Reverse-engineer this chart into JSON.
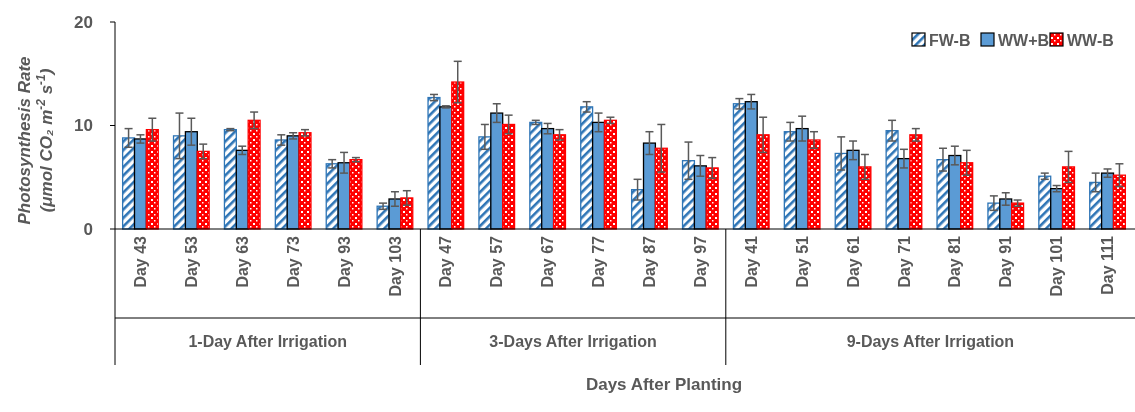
{
  "chart_data": {
    "type": "bar",
    "xlabel": "Days After Planting",
    "ylabel": "Photosynthesis Rate\n(μmol CO₂ m$^{-2}$ s$^{-1}$)",
    "categories": [
      "Day 43",
      "Day 53",
      "Day 63",
      "Day 73",
      "Day 93",
      "Day 103",
      "Day 47",
      "Day 57",
      "Day 67",
      "Day 77",
      "Day 87",
      "Day 97",
      "Day 41",
      "Day 51",
      "Day 61",
      "Day 71",
      "Day 81",
      "Day 91",
      "Day 101",
      "Day 111"
    ],
    "series": [
      {
        "name": "FW-B",
        "color": "#2e75b6",
        "values": [
          8.8,
          9.0,
          9.6,
          8.6,
          6.3,
          2.2,
          12.7,
          8.9,
          10.3,
          11.8,
          3.8,
          6.6,
          12.1,
          9.4,
          7.3,
          9.5,
          6.7,
          2.5,
          5.1,
          4.5
        ],
        "errors": [
          0.9,
          2.2,
          0.1,
          0.5,
          0.4,
          0.3,
          0.3,
          1.2,
          0.2,
          0.5,
          1.0,
          1.8,
          0.5,
          0.9,
          1.6,
          1.0,
          1.1,
          0.7,
          0.3,
          0.9
        ]
      },
      {
        "name": "WW+B",
        "color": "#5b9bd5",
        "values": [
          8.7,
          9.4,
          7.6,
          9.0,
          6.4,
          2.9,
          11.8,
          11.2,
          9.7,
          10.3,
          8.3,
          6.1,
          12.3,
          9.7,
          7.6,
          6.8,
          7.1,
          2.9,
          3.9,
          5.4
        ],
        "errors": [
          0.4,
          1.3,
          0.4,
          0.3,
          1.0,
          0.7,
          0.1,
          0.9,
          0.5,
          0.9,
          1.1,
          1.0,
          0.7,
          1.2,
          0.9,
          0.9,
          0.9,
          0.6,
          0.3,
          0.4
        ]
      },
      {
        "name": "WW-B",
        "color": "#ff0000",
        "values": [
          9.6,
          7.5,
          10.5,
          9.3,
          6.7,
          3.0,
          14.2,
          10.1,
          9.1,
          10.5,
          7.8,
          5.9,
          9.1,
          8.6,
          6.0,
          9.1,
          6.4,
          2.5,
          6.0,
          5.2
        ],
        "errors": [
          1.1,
          0.7,
          0.8,
          0.3,
          0.2,
          0.7,
          2.0,
          0.9,
          0.5,
          0.3,
          2.3,
          1.0,
          1.7,
          0.8,
          1.2,
          0.6,
          1.2,
          0.3,
          1.5,
          1.1
        ]
      }
    ],
    "ylim": [
      0,
      20
    ],
    "yticks": [
      0,
      10,
      20
    ],
    "legend": "top right",
    "annotations": [
      "1-Day After Irrigation",
      "3-Days After Irrigation",
      "9-Days After Irrigation"
    ]
  }
}
